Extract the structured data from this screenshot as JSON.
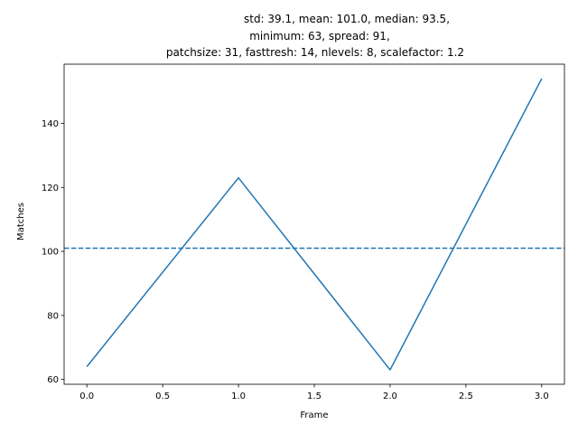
{
  "chart_data": {
    "type": "line",
    "title_lines": [
      "std: 39.1, mean: 101.0, median: 93.5,",
      "minimum: 63, spread: 91,",
      "patchsize: 31, fasttresh: 14, nlevels: 8, scalefactor: 1.2"
    ],
    "xlabel": "Frame",
    "ylabel": "Matches",
    "x": [
      0,
      1,
      2,
      3
    ],
    "y": [
      64,
      123,
      63,
      154
    ],
    "mean_line": 101.0,
    "xlim": [
      -0.15,
      3.15
    ],
    "ylim": [
      58.5,
      158.5
    ],
    "xticks": [
      0.0,
      0.5,
      1.0,
      1.5,
      2.0,
      2.5,
      3.0
    ],
    "xtick_labels": [
      "0.0",
      "0.5",
      "1.0",
      "1.5",
      "2.0",
      "2.5",
      "3.0"
    ],
    "yticks": [
      60,
      80,
      100,
      120,
      140
    ],
    "ytick_labels": [
      "60",
      "80",
      "100",
      "120",
      "140"
    ],
    "grid": false,
    "legend": "none",
    "colors": {
      "line": "#1f77b4",
      "mean_line": "#1f77b4",
      "axes": "#000000"
    }
  }
}
